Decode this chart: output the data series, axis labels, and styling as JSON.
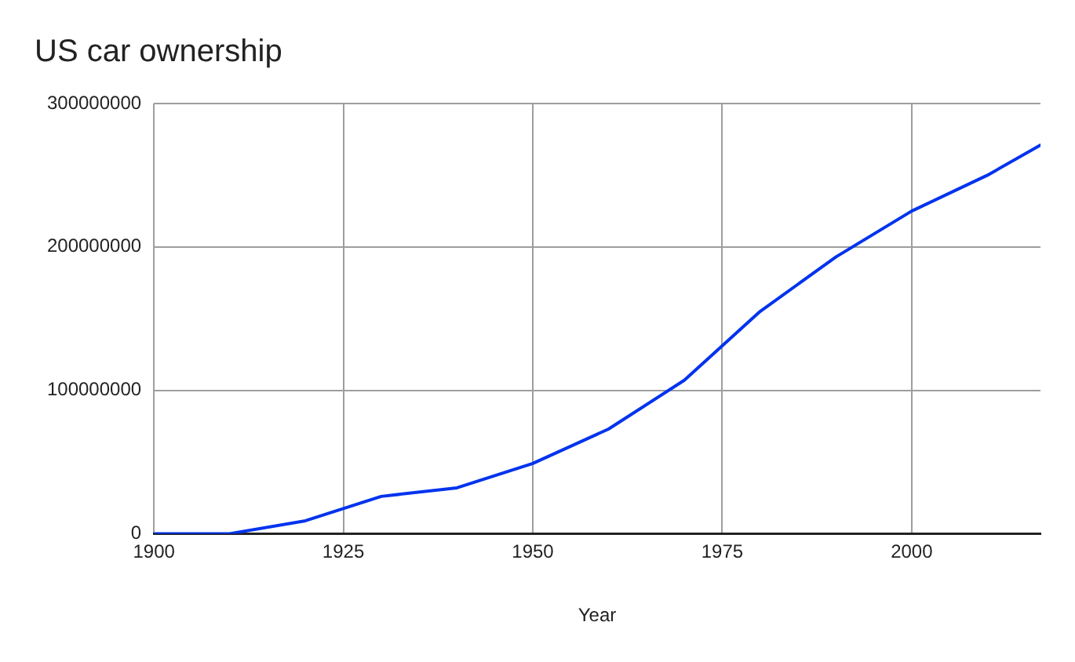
{
  "chart_data": {
    "type": "line",
    "title": "US car ownership",
    "xlabel": "Year",
    "x": [
      1900,
      1910,
      1920,
      1930,
      1940,
      1950,
      1960,
      1970,
      1980,
      1990,
      2000,
      2010,
      2017
    ],
    "series": [
      {
        "color": "#0033ee",
        "values": [
          0,
          0,
          9000000,
          26000000,
          32000000,
          49000000,
          73000000,
          107000000,
          155000000,
          193000000,
          225000000,
          250000000,
          271000000
        ]
      }
    ],
    "xlim": [
      1900,
      2017
    ],
    "xticks": [
      1900,
      1925,
      1950,
      1975,
      2000
    ],
    "ylim": [
      0,
      300000000
    ],
    "yticks": [
      0,
      100000000,
      200000000,
      300000000
    ],
    "grid": true,
    "marker": "none",
    "line_style": "solid"
  }
}
